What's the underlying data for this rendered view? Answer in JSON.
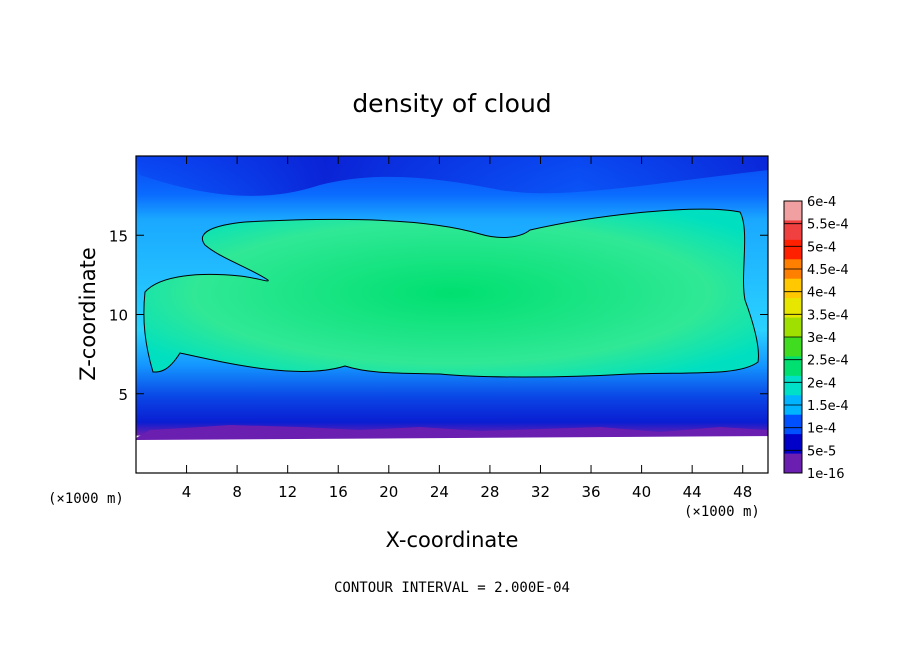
{
  "chart_data": {
    "type": "heatmap",
    "title": "density of cloud",
    "xlabel": "X-coordinate",
    "ylabel": "Z-coordinate",
    "x_unit": "(×1000 m)",
    "x_unit_right": "(×1000 m)",
    "xlim": [
      0,
      50
    ],
    "ylim": [
      0,
      20
    ],
    "x_ticks": [
      4,
      8,
      12,
      16,
      20,
      24,
      28,
      32,
      36,
      40,
      44,
      48
    ],
    "y_ticks": [
      5,
      10,
      15
    ],
    "colorbar": {
      "labels": [
        "6e-4",
        "5.5e-4",
        "5e-4",
        "4.5e-4",
        "4e-4",
        "3.5e-4",
        "3e-4",
        "2.5e-4",
        "2e-4",
        "1.5e-4",
        "1e-4",
        "5e-5",
        "1e-16"
      ],
      "colors": [
        "#f0a0a0",
        "#f04040",
        "#ff2000",
        "#ff8000",
        "#ffc800",
        "#e6e600",
        "#a0e000",
        "#40dc20",
        "#00e070",
        "#00e0c8",
        "#00b4ff",
        "#0050ff",
        "#0000c8",
        "#6a1fb0"
      ]
    },
    "cloud_base_km": 2.5,
    "cloud_top_km": 16.5,
    "core_contour_value": "2e-4",
    "footer": "CONTOUR INTERVAL = 2.000E-04"
  }
}
